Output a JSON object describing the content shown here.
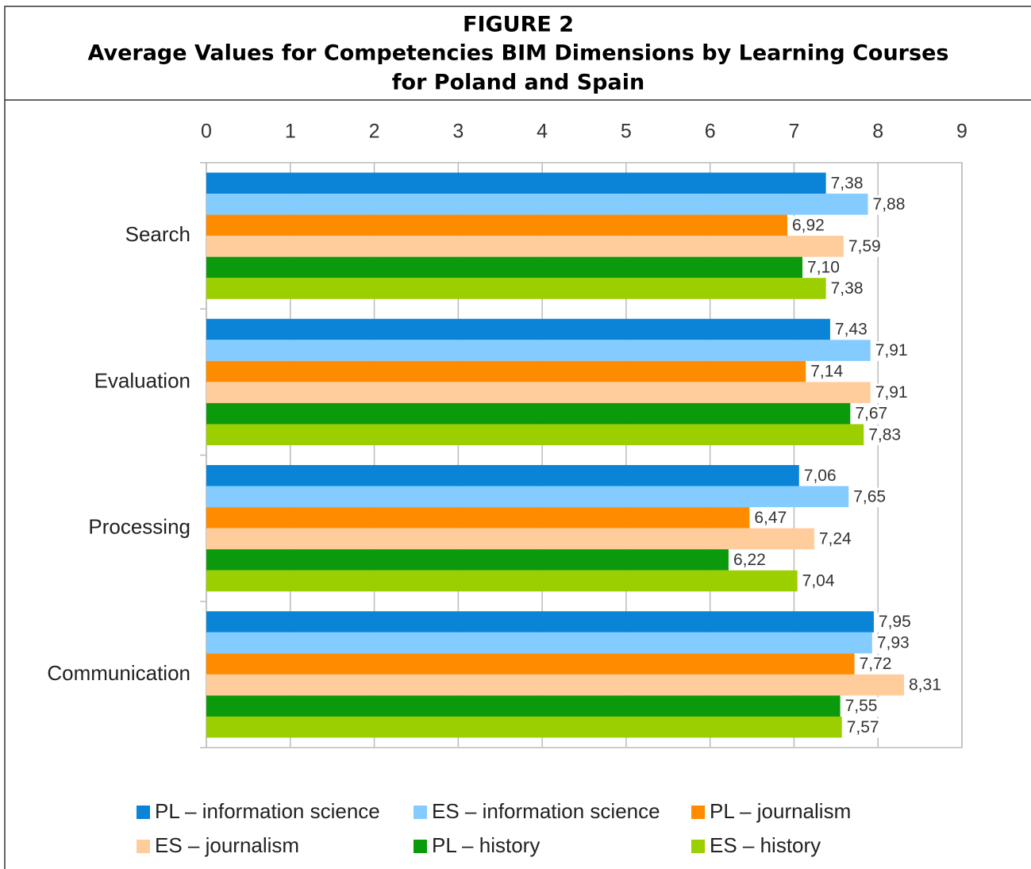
{
  "chart_data": {
    "type": "bar",
    "orientation": "horizontal",
    "title_lines": [
      "FIGURE 2",
      "Average Values for Competencies BIM Dimensions by Learning Courses",
      "for Poland and Spain"
    ],
    "categories": [
      "Search",
      "Evaluation",
      "Processing",
      "Communication"
    ],
    "xlim": [
      0,
      9
    ],
    "xticks": [
      0,
      1,
      2,
      3,
      4,
      5,
      6,
      7,
      8,
      9
    ],
    "grid": true,
    "legend": "bottom",
    "series": [
      {
        "name": "PL – information science",
        "color": "#0a84d6",
        "values": [
          7.38,
          7.43,
          7.06,
          7.95
        ],
        "value_labels": [
          "7,38",
          "7,43",
          "7,06",
          "7,95"
        ]
      },
      {
        "name": "ES – information science",
        "color": "#84cbff",
        "values": [
          7.88,
          7.91,
          7.65,
          7.93
        ],
        "value_labels": [
          "7,88",
          "7,91",
          "7,65",
          "7,93"
        ]
      },
      {
        "name": "PL – journalism",
        "color": "#ff8c00",
        "values": [
          6.92,
          7.14,
          6.47,
          7.72
        ],
        "value_labels": [
          "6,92",
          "7,14",
          "6,47",
          "7,72"
        ]
      },
      {
        "name": "ES – journalism",
        "color": "#ffcc9c",
        "values": [
          7.59,
          7.91,
          7.24,
          8.31
        ],
        "value_labels": [
          "7,59",
          "7,91",
          "7,24",
          "8,31"
        ]
      },
      {
        "name": "PL – history",
        "color": "#0b9a0b",
        "values": [
          7.1,
          7.67,
          6.22,
          7.55
        ],
        "value_labels": [
          "7,10",
          "7,67",
          "6,22",
          "7,55"
        ]
      },
      {
        "name": "ES – history",
        "color": "#9ccf00",
        "values": [
          7.38,
          7.83,
          7.04,
          7.57
        ],
        "value_labels": [
          "7,38",
          "7,83",
          "7,04",
          "7,57"
        ]
      }
    ]
  }
}
